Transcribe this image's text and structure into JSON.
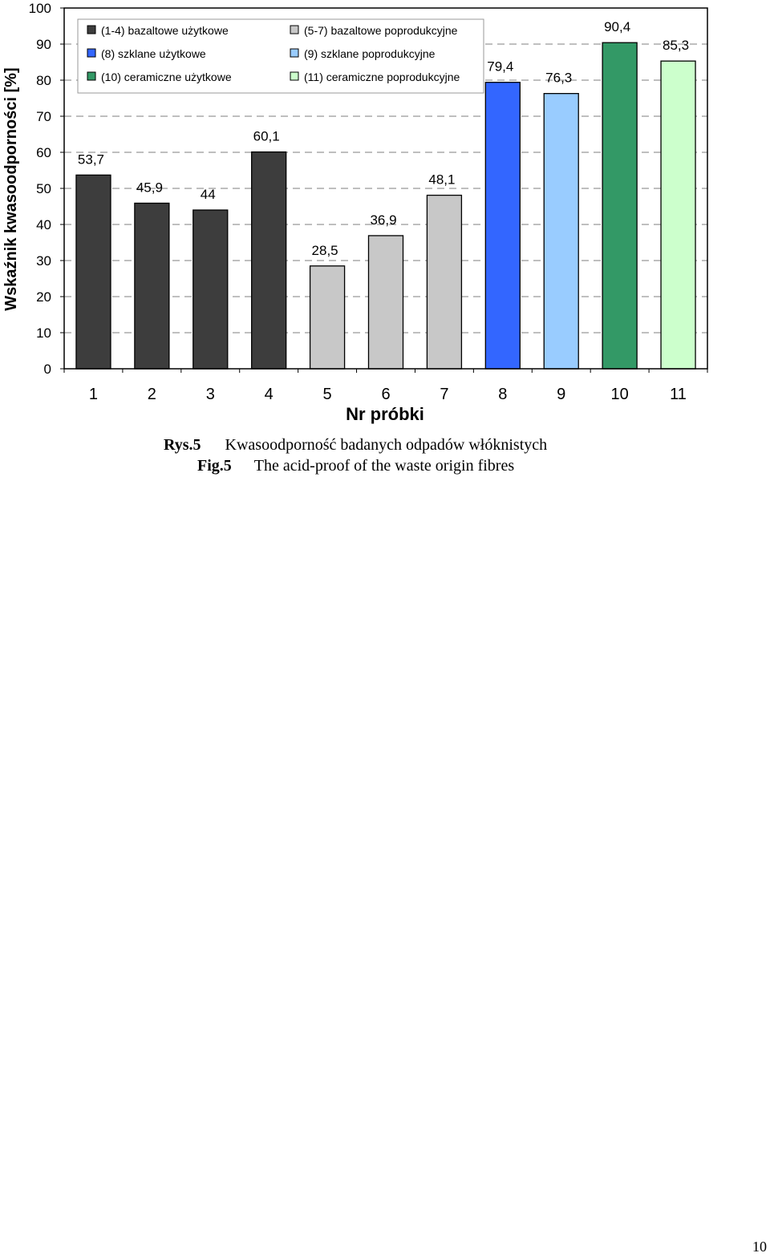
{
  "chart_data": {
    "type": "bar",
    "xlabel": "Nr próbki",
    "ylabel": "Wskaźnik kwasoodporności [%]",
    "ylim": [
      0,
      100
    ],
    "yticks": [
      "0",
      "10",
      "20",
      "30",
      "40",
      "50",
      "60",
      "70",
      "80",
      "90",
      "100"
    ],
    "grid": "horizontal dashed",
    "legend_position": "top-left",
    "categories": [
      "1",
      "2",
      "3",
      "4",
      "5",
      "6",
      "7",
      "8",
      "9",
      "10",
      "11"
    ],
    "values": [
      53.7,
      45.9,
      44,
      60.1,
      28.5,
      36.9,
      48.1,
      79.4,
      76.3,
      90.4,
      85.3
    ],
    "value_labels": [
      "53,7",
      "45,9",
      "44",
      "60,1",
      "28,5",
      "36,9",
      "48,1",
      "79,4",
      "76,3",
      "90,4",
      "85,3"
    ],
    "bar_groups": [
      0,
      0,
      0,
      0,
      1,
      1,
      1,
      2,
      3,
      4,
      5
    ],
    "groups": [
      {
        "label": "(1-4) bazaltowe użytkowe",
        "color": "#3d3d3d"
      },
      {
        "label": "(5-7) bazaltowe poprodukcyjne",
        "color": "#c8c8c8"
      },
      {
        "label": "(8) szklane użytkowe",
        "color": "#3366ff"
      },
      {
        "label": "(9) szklane poprodukcyjne",
        "color": "#99ccff"
      },
      {
        "label": "(10) ceramiczne użytkowe",
        "color": "#339966"
      },
      {
        "label": "(11) ceramiczne poprodukcyjne",
        "color": "#ccffcc"
      }
    ]
  },
  "caption": {
    "line1_label": "Rys.5",
    "line1_text": "Kwasoodporność badanych odpadów włóknistych",
    "line2_label": "Fig.5",
    "line2_text": "The acid-proof of the waste origin fibres"
  },
  "page_number": "10"
}
